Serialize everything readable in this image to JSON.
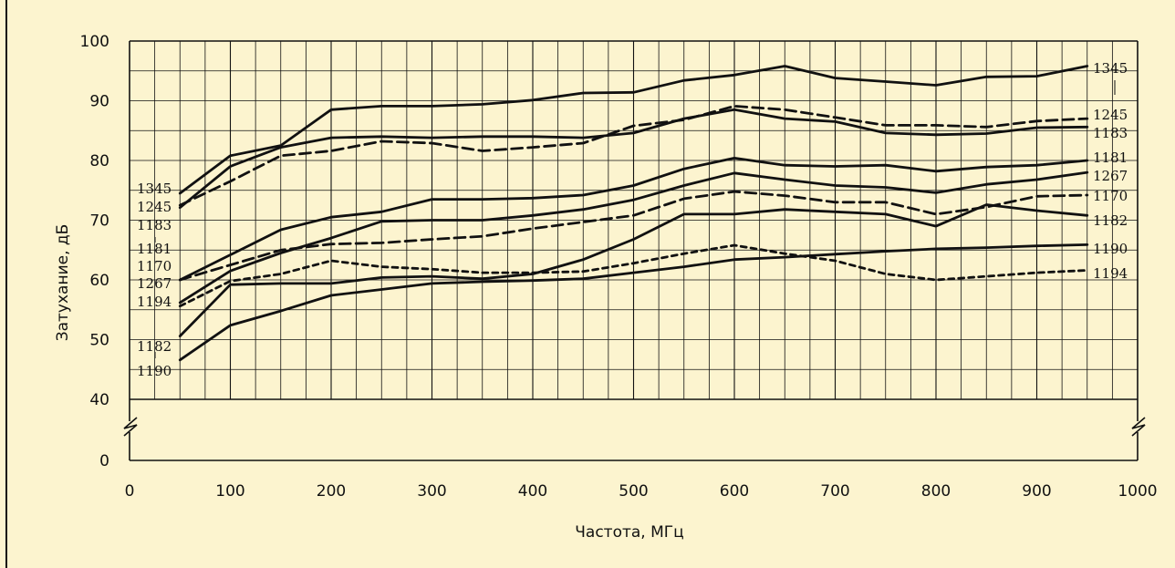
{
  "chart_data": {
    "type": "line",
    "xlabel": "Частота, МГц",
    "ylabel": "Затухание, дБ",
    "x_ticks": [
      0,
      100,
      200,
      300,
      400,
      500,
      600,
      700,
      800,
      900,
      1000
    ],
    "y_ticks": [
      "0",
      "40",
      "50",
      "60",
      "70",
      "80",
      "90",
      "100"
    ],
    "xlim": [
      0,
      1000
    ],
    "ylim": [
      40,
      100
    ],
    "axis_break": "y below 40",
    "grid": true,
    "colors": {
      "background": "#fcf4cf",
      "ink": "#111111"
    },
    "x": [
      50,
      100,
      150,
      200,
      250,
      300,
      350,
      400,
      450,
      500,
      550,
      600,
      650,
      700,
      750,
      800,
      850,
      900,
      950
    ],
    "series": [
      {
        "name": "1345",
        "style": "solid",
        "values": [
          74.5,
          80.8,
          82.5,
          88.5,
          89.1,
          89.1,
          89.4,
          90.1,
          91.3,
          91.4,
          93.4,
          94.3,
          95.8,
          93.8,
          93.2,
          92.6,
          94.0,
          94.1,
          95.8
        ]
      },
      {
        "name": "1245",
        "style": "dashed",
        "values": [
          72.5,
          76.5,
          80.8,
          81.6,
          83.2,
          82.9,
          81.6,
          82.2,
          82.9,
          85.8,
          86.8,
          89.1,
          88.5,
          87.2,
          85.9,
          85.9,
          85.6,
          86.6,
          87.0
        ]
      },
      {
        "name": "1183",
        "style": "solid",
        "values": [
          72.1,
          79.0,
          82.2,
          83.8,
          84.0,
          83.8,
          84.0,
          84.0,
          83.8,
          84.6,
          87.0,
          88.5,
          87.0,
          86.5,
          84.6,
          84.3,
          84.5,
          85.5,
          85.6
        ]
      },
      {
        "name": "1181",
        "style": "solid",
        "values": [
          60.0,
          64.2,
          68.4,
          70.5,
          71.4,
          73.5,
          73.5,
          73.7,
          74.2,
          75.8,
          78.6,
          80.4,
          79.2,
          79.0,
          79.2,
          78.2,
          78.9,
          79.2,
          80.0
        ]
      },
      {
        "name": "1267",
        "style": "solid",
        "values": [
          56.2,
          61.5,
          64.5,
          67.0,
          69.8,
          70.0,
          70.0,
          70.8,
          71.8,
          73.4,
          75.8,
          77.9,
          76.8,
          75.8,
          75.5,
          74.6,
          76.0,
          76.8,
          78.0
        ]
      },
      {
        "name": "1170",
        "style": "dashed",
        "values": [
          60.0,
          62.5,
          65.0,
          66.0,
          66.2,
          66.8,
          67.3,
          68.6,
          69.7,
          70.8,
          73.6,
          74.8,
          74.1,
          73.0,
          73.0,
          71.0,
          72.2,
          74.0,
          74.2
        ]
      },
      {
        "name": "1182",
        "style": "solid",
        "values": [
          50.6,
          59.2,
          59.4,
          59.4,
          60.4,
          60.6,
          60.2,
          61.0,
          63.4,
          66.8,
          71.0,
          71.0,
          71.8,
          71.4,
          71.0,
          69.0,
          72.6,
          71.6,
          70.8
        ]
      },
      {
        "name": "1194",
        "style": "dotted",
        "values": [
          55.6,
          59.8,
          61.0,
          63.2,
          62.2,
          61.8,
          61.2,
          61.2,
          61.4,
          62.8,
          64.4,
          65.8,
          64.4,
          63.2,
          61.0,
          60.0,
          60.6,
          61.2,
          61.6
        ]
      },
      {
        "name": "1190",
        "style": "solid",
        "values": [
          46.6,
          52.4,
          54.8,
          57.4,
          58.4,
          59.4,
          59.7,
          59.9,
          60.2,
          61.2,
          62.2,
          63.4,
          63.8,
          64.3,
          64.8,
          65.2,
          65.4,
          65.7,
          65.9
        ]
      }
    ]
  }
}
